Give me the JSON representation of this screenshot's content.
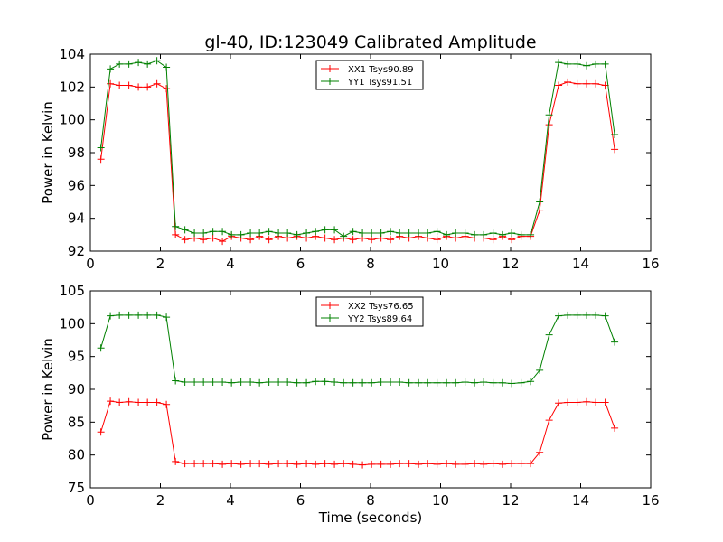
{
  "title": "gl-40, ID:123049 Calibrated Amplitude",
  "chart_data": [
    {
      "type": "line",
      "title": "gl-40, ID:123049 Calibrated Amplitude",
      "xlabel": "",
      "ylabel": "Power in Kelvin",
      "xlim": [
        0,
        16
      ],
      "ylim": [
        92,
        104
      ],
      "xticks": [
        "0",
        "2",
        "4",
        "6",
        "8",
        "10",
        "12",
        "14",
        "16"
      ],
      "yticks": [
        "92",
        "94",
        "96",
        "98",
        "100",
        "102",
        "104"
      ],
      "legend_position": "upper-center",
      "grid": false,
      "x": [
        0.3,
        0.57,
        0.83,
        1.1,
        1.37,
        1.63,
        1.9,
        2.17,
        2.43,
        2.7,
        2.97,
        3.23,
        3.5,
        3.77,
        4.03,
        4.3,
        4.57,
        4.83,
        5.1,
        5.37,
        5.63,
        5.9,
        6.17,
        6.43,
        6.7,
        6.97,
        7.23,
        7.5,
        7.77,
        8.03,
        8.3,
        8.57,
        8.83,
        9.1,
        9.37,
        9.63,
        9.9,
        10.17,
        10.43,
        10.7,
        10.97,
        11.23,
        11.5,
        11.77,
        12.03,
        12.3,
        12.57,
        12.83,
        13.1,
        13.37,
        13.63,
        13.9,
        14.17,
        14.43,
        14.7,
        14.97
      ],
      "series": [
        {
          "name": "XX1 Tsys90.89",
          "color": "#ff0000",
          "values": [
            97.6,
            102.2,
            102.1,
            102.1,
            102.0,
            102.0,
            102.2,
            101.9,
            93.0,
            92.7,
            92.8,
            92.7,
            92.8,
            92.6,
            92.9,
            92.8,
            92.7,
            92.9,
            92.7,
            92.9,
            92.8,
            92.9,
            92.8,
            92.9,
            92.8,
            92.7,
            92.8,
            92.7,
            92.8,
            92.7,
            92.8,
            92.7,
            92.9,
            92.8,
            92.9,
            92.8,
            92.7,
            92.9,
            92.8,
            92.9,
            92.8,
            92.8,
            92.7,
            92.9,
            92.7,
            92.9,
            92.9,
            94.5,
            99.7,
            102.1,
            102.3,
            102.2,
            102.2,
            102.2,
            102.1,
            98.2
          ]
        },
        {
          "name": "YY1 Tsys91.51",
          "color": "#008000",
          "values": [
            98.3,
            103.1,
            103.4,
            103.4,
            103.5,
            103.4,
            103.6,
            103.2,
            93.5,
            93.3,
            93.1,
            93.1,
            93.2,
            93.2,
            93.0,
            93.0,
            93.1,
            93.1,
            93.2,
            93.1,
            93.1,
            93.0,
            93.1,
            93.2,
            93.3,
            93.3,
            92.9,
            93.2,
            93.1,
            93.1,
            93.1,
            93.2,
            93.1,
            93.1,
            93.1,
            93.1,
            93.2,
            93.0,
            93.1,
            93.1,
            93.0,
            93.0,
            93.1,
            93.0,
            93.1,
            93.0,
            93.0,
            95.0,
            100.3,
            103.5,
            103.4,
            103.4,
            103.3,
            103.4,
            103.4,
            99.1
          ]
        }
      ]
    },
    {
      "type": "line",
      "title": "",
      "xlabel": "Time (seconds)",
      "ylabel": "Power in Kelvin",
      "xlim": [
        0,
        16
      ],
      "ylim": [
        75,
        105
      ],
      "xticks": [
        "0",
        "2",
        "4",
        "6",
        "8",
        "10",
        "12",
        "14",
        "16"
      ],
      "yticks": [
        "75",
        "80",
        "85",
        "90",
        "95",
        "100",
        "105"
      ],
      "legend_position": "upper-center",
      "grid": false,
      "x": [
        0.3,
        0.57,
        0.83,
        1.1,
        1.37,
        1.63,
        1.9,
        2.17,
        2.43,
        2.7,
        2.97,
        3.23,
        3.5,
        3.77,
        4.03,
        4.3,
        4.57,
        4.83,
        5.1,
        5.37,
        5.63,
        5.9,
        6.17,
        6.43,
        6.7,
        6.97,
        7.23,
        7.5,
        7.77,
        8.03,
        8.3,
        8.57,
        8.83,
        9.1,
        9.37,
        9.63,
        9.9,
        10.17,
        10.43,
        10.7,
        10.97,
        11.23,
        11.5,
        11.77,
        12.03,
        12.3,
        12.57,
        12.83,
        13.1,
        13.37,
        13.63,
        13.9,
        14.17,
        14.43,
        14.7,
        14.97
      ],
      "series": [
        {
          "name": "XX2 Tsys76.65",
          "color": "#ff0000",
          "values": [
            83.5,
            88.2,
            88.0,
            88.1,
            88.0,
            88.0,
            88.0,
            87.7,
            79.0,
            78.7,
            78.7,
            78.7,
            78.7,
            78.6,
            78.7,
            78.6,
            78.7,
            78.7,
            78.6,
            78.7,
            78.7,
            78.6,
            78.7,
            78.6,
            78.7,
            78.6,
            78.7,
            78.6,
            78.5,
            78.6,
            78.6,
            78.6,
            78.7,
            78.7,
            78.6,
            78.7,
            78.6,
            78.7,
            78.6,
            78.6,
            78.7,
            78.6,
            78.7,
            78.6,
            78.7,
            78.7,
            78.7,
            80.4,
            85.3,
            87.9,
            88.0,
            88.0,
            88.1,
            88.0,
            88.0,
            84.1
          ]
        },
        {
          "name": "YY2 Tsys89.64",
          "color": "#008000",
          "values": [
            96.3,
            101.2,
            101.3,
            101.3,
            101.3,
            101.3,
            101.3,
            101.0,
            91.3,
            91.1,
            91.1,
            91.1,
            91.1,
            91.1,
            91.0,
            91.1,
            91.1,
            91.0,
            91.1,
            91.1,
            91.1,
            91.0,
            91.0,
            91.2,
            91.2,
            91.1,
            91.0,
            91.0,
            91.0,
            91.0,
            91.1,
            91.1,
            91.1,
            91.0,
            91.0,
            91.0,
            91.0,
            91.0,
            91.0,
            91.1,
            91.0,
            91.1,
            91.0,
            91.0,
            90.9,
            91.0,
            91.2,
            92.9,
            98.3,
            101.2,
            101.3,
            101.3,
            101.3,
            101.3,
            101.2,
            97.2
          ]
        }
      ]
    }
  ]
}
